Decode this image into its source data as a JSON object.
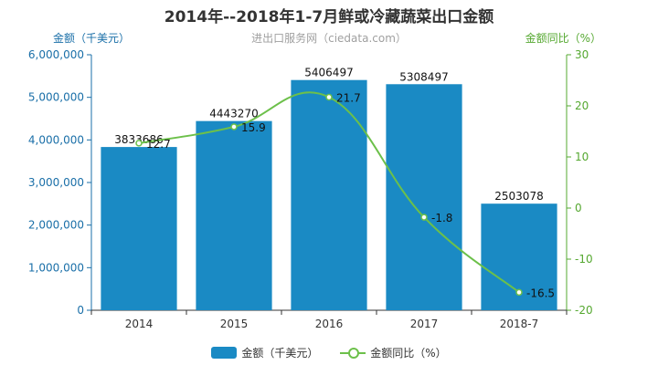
{
  "chart_data": {
    "type": "bar",
    "title": "2014年--2018年1-7月鲜或冷藏蔬菜出口金额",
    "subtitle": "进出口服务网（ciedata.com）",
    "categories": [
      "2014",
      "2015",
      "2016",
      "2017",
      "2018-7"
    ],
    "series": [
      {
        "name": "金额（千美元）",
        "type": "bar",
        "axis": "left",
        "values": [
          3833686,
          4443270,
          5406497,
          5308497,
          2503078
        ]
      },
      {
        "name": "金额同比（%）",
        "type": "line",
        "axis": "right",
        "values": [
          12.7,
          15.9,
          21.7,
          -1.8,
          -16.5
        ]
      }
    ],
    "ylabel_left": "金额（千美元）",
    "ylabel_right": "金额同比（%）",
    "ylim_left": [
      0,
      6000000
    ],
    "ylim_right": [
      -20,
      30
    ],
    "yticks_left": [
      "0",
      "1,000,000",
      "2,000,000",
      "3,000,000",
      "4,000,000",
      "5,000,000",
      "6,000,000"
    ],
    "yticks_right": [
      "-20",
      "-10",
      "0",
      "10",
      "20",
      "30"
    ],
    "grid": false,
    "legend_position": "bottom",
    "colors": {
      "bar": "#1a8ac4",
      "line": "#6cc04a",
      "left_axis": "#1a6fa8",
      "right_axis": "#55a830"
    }
  }
}
